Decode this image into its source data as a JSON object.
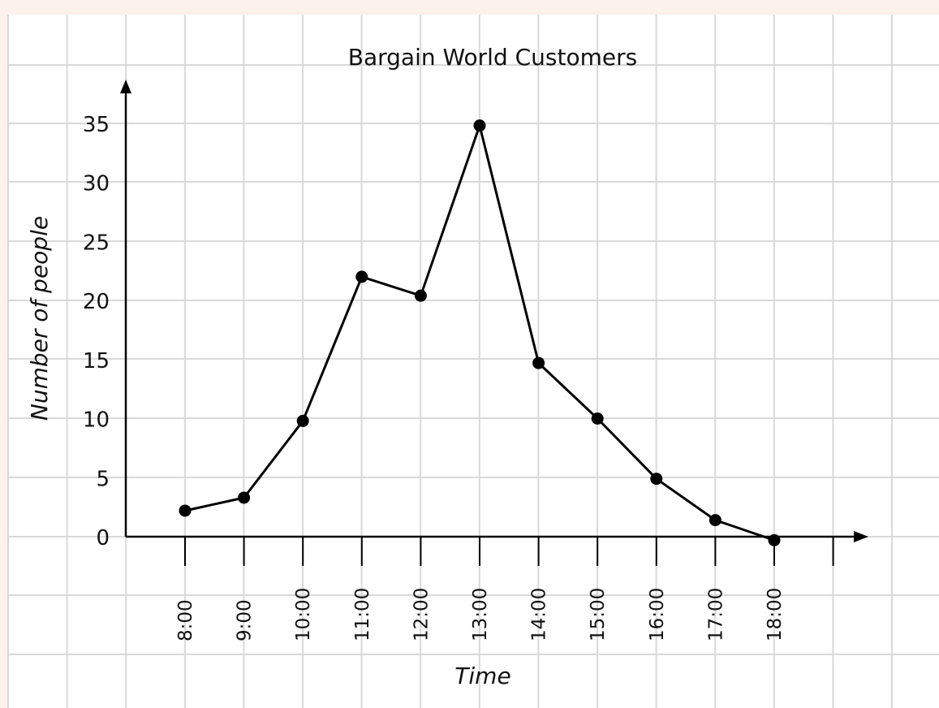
{
  "chart_data": {
    "type": "line",
    "title": "Bargain World Customers",
    "xlabel": "Time",
    "ylabel": "Number of people",
    "categories": [
      "8:00",
      "9:00",
      "10:00",
      "11:00",
      "12:00",
      "13:00",
      "14:00",
      "15:00",
      "16:00",
      "17:00",
      "18:00"
    ],
    "series": [
      {
        "values": [
          2.2,
          3.3,
          9.8,
          22,
          20.4,
          34.8,
          14.7,
          10,
          4.9,
          1.4,
          -0.3
        ]
      }
    ],
    "yticks": [
      "0",
      "5",
      "10",
      "15",
      "20",
      "25",
      "30",
      "35"
    ],
    "ytick_values": [
      0,
      5,
      10,
      15,
      20,
      25,
      30,
      35
    ],
    "ylim": [
      0,
      35
    ],
    "grid": true,
    "colors": {
      "frame": "#fdf1ec",
      "grid": "#d9d9d9",
      "line": "#000000"
    }
  }
}
